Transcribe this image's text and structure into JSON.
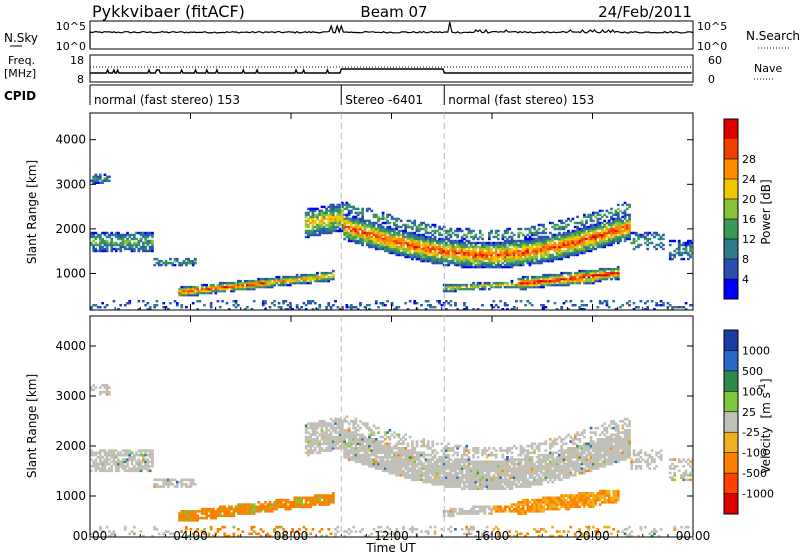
{
  "header": {
    "station": "Pykkvibaer (fitACF)",
    "beam": "Beam 07",
    "date": "24/Feb/2011"
  },
  "strip": {
    "nsky_label": "N.Sky",
    "nsky_ticks": [
      "10^5",
      "10^0"
    ],
    "nsearch_label": "N.Search",
    "nsearch_ticks": [
      "10^5",
      "10^0"
    ],
    "freq_label": "Freq.",
    "freq_unit": "[MHz]",
    "freq_ticks": [
      "18",
      "8"
    ],
    "nave_label": "Nave",
    "nave_ticks": [
      "60",
      "0"
    ],
    "cpid_label": "CPID",
    "modes": [
      {
        "label": "normal (fast stereo) 153",
        "start_h": 0,
        "end_h": 10
      },
      {
        "label": "Stereo -6401",
        "start_h": 10,
        "end_h": 14.1
      },
      {
        "label": "normal (fast stereo) 153",
        "start_h": 14.1,
        "end_h": 24
      }
    ]
  },
  "chart_data": [
    {
      "type": "heatmap",
      "quantity": "Power",
      "ylabel": "Slant Range [km]",
      "yticks": [
        "1000",
        "2000",
        "3000",
        "4000"
      ],
      "ylim": [
        180,
        4600
      ],
      "xlim": [
        0,
        24
      ],
      "colorbar": {
        "label": "Power [dB]",
        "ticks": [
          "4",
          "8",
          "12",
          "16",
          "20",
          "24",
          "28"
        ],
        "colors": [
          "#0000ff",
          "#2b4fb0",
          "#2f7a8c",
          "#3c9a56",
          "#88c23a",
          "#f0c800",
          "#ff8a00",
          "#f04000",
          "#e00000"
        ]
      }
    },
    {
      "type": "heatmap",
      "quantity": "Velocity",
      "ylabel": "Slant Range [km]",
      "yticks": [
        "1000",
        "2000",
        "3000",
        "4000"
      ],
      "ylim": [
        180,
        4600
      ],
      "xlim": [
        0,
        24
      ],
      "xlabel": "Time UT",
      "xticks": [
        "00:00",
        "04:00",
        "08:00",
        "12:00",
        "16:00",
        "20:00",
        "00:00"
      ],
      "colorbar": {
        "label": "Velocity",
        "unit": "[m s",
        "unit_sup": "-1",
        "unit_close": "]",
        "ticks": [
          "1000",
          "500",
          "100",
          "25",
          "-25",
          "-100",
          "-500",
          "-1000"
        ],
        "colors": [
          "#1c3aa8",
          "#2b68c8",
          "#2e8a4a",
          "#7cc83c",
          "#c0c0b8",
          "#f0b020",
          "#ff8000",
          "#ff4000",
          "#e00000"
        ]
      }
    }
  ]
}
